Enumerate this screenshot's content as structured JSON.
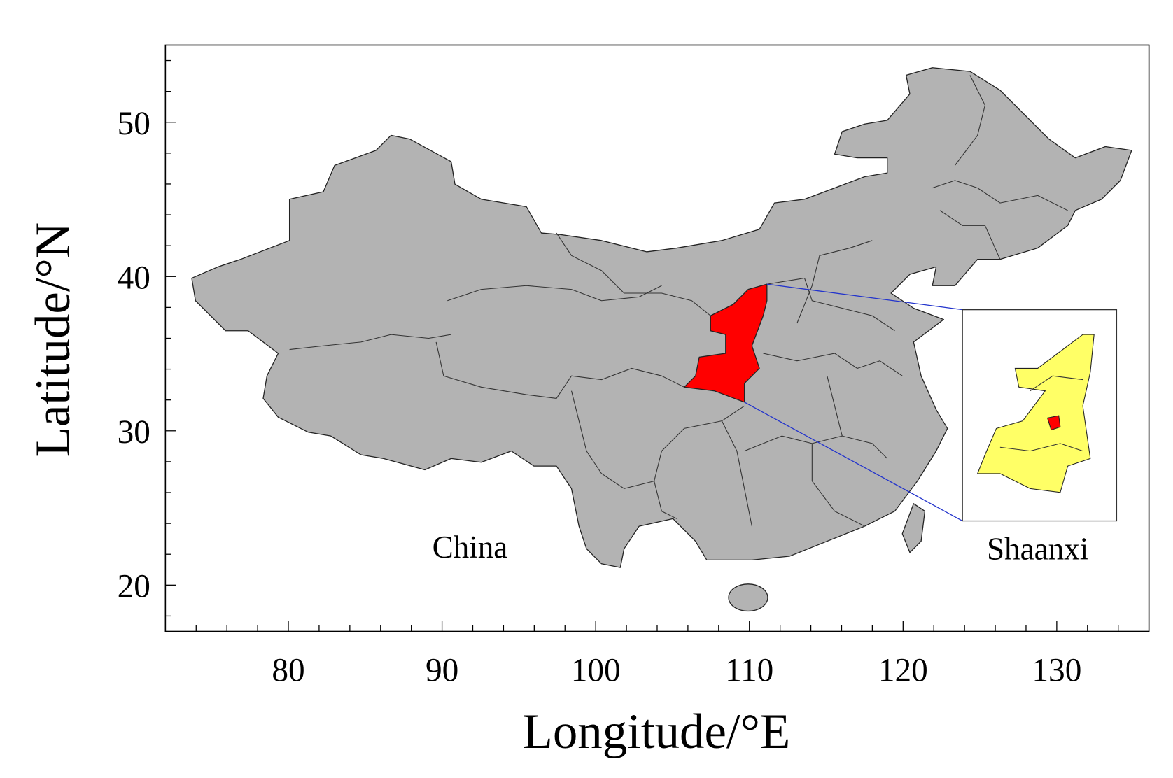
{
  "map": {
    "x_label": "Longitude/°E",
    "y_label": "Latitude/°N",
    "xlim": [
      72,
      136
    ],
    "ylim": [
      17,
      55
    ],
    "xticks": [
      80,
      90,
      100,
      110,
      120,
      130
    ],
    "yticks": [
      20,
      30,
      40,
      50
    ],
    "xminor_ticks": [
      74,
      76,
      78,
      82,
      84,
      86,
      88,
      92,
      94,
      96,
      98,
      102,
      104,
      106,
      108,
      112,
      114,
      116,
      118,
      122,
      124,
      126,
      128,
      132,
      134
    ],
    "yminor_ticks": [
      18,
      22,
      24,
      26,
      28,
      32,
      34,
      36,
      38,
      42,
      44,
      46,
      48,
      52,
      54
    ],
    "region_label": "China",
    "inset_label": "Shaanxi"
  }
}
